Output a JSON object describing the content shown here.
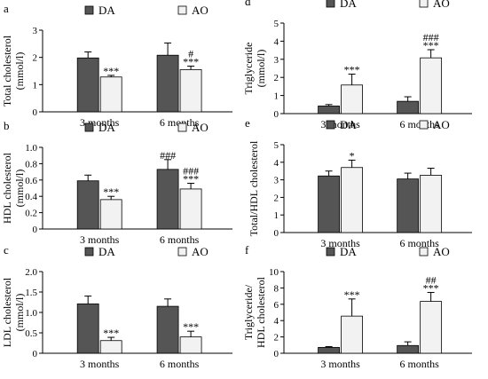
{
  "colors": {
    "DA": "#555555",
    "AO": "#f2f2f2",
    "axis": "#000000"
  },
  "chart_data": [
    {
      "panel": "a",
      "type": "bar",
      "ylabel": [
        "Total cholesterol",
        "(mmol/l)"
      ],
      "categories": [
        "3 months",
        "6 months"
      ],
      "ylim": [
        0,
        3
      ],
      "ticks": [
        "0",
        "1",
        "2",
        "3"
      ],
      "series": [
        {
          "name": "DA",
          "values": [
            1.98,
            2.08
          ],
          "errors": [
            0.22,
            0.45
          ]
        },
        {
          "name": "AO",
          "values": [
            1.28,
            1.55
          ],
          "errors": [
            0.06,
            0.13
          ]
        }
      ],
      "annotations": [
        {
          "series": 1,
          "category": 0,
          "lines": [
            "***"
          ]
        },
        {
          "series": 1,
          "category": 1,
          "lines": [
            "#",
            "***"
          ]
        }
      ]
    },
    {
      "panel": "b",
      "type": "bar",
      "ylabel": [
        "HDL cholesterol",
        "(mmol/l)"
      ],
      "categories": [
        "3 months",
        "6 months"
      ],
      "ylim": [
        0,
        1
      ],
      "ticks": [
        "0",
        "0.2",
        "0.4",
        "0.6",
        "0.8",
        "1.0"
      ],
      "series": [
        {
          "name": "DA",
          "values": [
            0.59,
            0.73
          ],
          "errors": [
            0.07,
            0.12
          ]
        },
        {
          "name": "AO",
          "values": [
            0.36,
            0.49
          ],
          "errors": [
            0.04,
            0.07
          ]
        }
      ],
      "annotations": [
        {
          "series": 0,
          "category": 1,
          "lines": [
            "###"
          ]
        },
        {
          "series": 1,
          "category": 0,
          "lines": [
            "***"
          ]
        },
        {
          "series": 1,
          "category": 1,
          "lines": [
            "###",
            "***"
          ]
        }
      ]
    },
    {
      "panel": "c",
      "type": "bar",
      "ylabel": [
        "LDL cholesterol",
        "(mmol/l)"
      ],
      "categories": [
        "3 months",
        "6 months"
      ],
      "ylim": [
        0,
        2
      ],
      "ticks": [
        "0",
        "0.5",
        "1.0",
        "1.5",
        "2.0"
      ],
      "series": [
        {
          "name": "DA",
          "values": [
            1.21,
            1.15
          ],
          "errors": [
            0.19,
            0.18
          ]
        },
        {
          "name": "AO",
          "values": [
            0.31,
            0.4
          ],
          "errors": [
            0.08,
            0.14
          ]
        }
      ],
      "annotations": [
        {
          "series": 1,
          "category": 0,
          "lines": [
            "***"
          ]
        },
        {
          "series": 1,
          "category": 1,
          "lines": [
            "***"
          ]
        }
      ]
    },
    {
      "panel": "d",
      "type": "bar",
      "ylabel": [
        "Triglyceride",
        "(mmol/l)"
      ],
      "categories": [
        "3 months",
        "6 months"
      ],
      "ylim": [
        0,
        5
      ],
      "ticks": [
        "0",
        "1",
        "2",
        "3",
        "4",
        "5"
      ],
      "series": [
        {
          "name": "DA",
          "values": [
            0.42,
            0.68
          ],
          "errors": [
            0.08,
            0.25
          ]
        },
        {
          "name": "AO",
          "values": [
            1.58,
            3.08
          ],
          "errors": [
            0.6,
            0.45
          ]
        }
      ],
      "annotations": [
        {
          "series": 1,
          "category": 0,
          "lines": [
            "***"
          ]
        },
        {
          "series": 1,
          "category": 1,
          "lines": [
            "###",
            "***"
          ]
        }
      ]
    },
    {
      "panel": "e",
      "type": "bar",
      "ylabel": [
        "Total/HDL cholesterol"
      ],
      "categories": [
        "3 months",
        "6 months"
      ],
      "ylim": [
        0,
        5
      ],
      "ticks": [
        "0",
        "1",
        "2",
        "3",
        "4",
        "5"
      ],
      "series": [
        {
          "name": "DA",
          "values": [
            3.22,
            3.05
          ],
          "errors": [
            0.28,
            0.33
          ]
        },
        {
          "name": "AO",
          "values": [
            3.7,
            3.26
          ],
          "errors": [
            0.42,
            0.4
          ]
        }
      ],
      "annotations": [
        {
          "series": 1,
          "category": 0,
          "lines": [
            "*"
          ]
        }
      ]
    },
    {
      "panel": "f",
      "type": "bar",
      "ylabel": [
        "Triglyceride/",
        "HDL cholesterol"
      ],
      "categories": [
        "3 months",
        "6 months"
      ],
      "ylim": [
        0,
        10
      ],
      "ticks": [
        "0",
        "2",
        "4",
        "6",
        "8",
        "10"
      ],
      "series": [
        {
          "name": "DA",
          "values": [
            0.72,
            0.95
          ],
          "errors": [
            0.1,
            0.45
          ]
        },
        {
          "name": "AO",
          "values": [
            4.55,
            6.35
          ],
          "errors": [
            2.1,
            1.1
          ]
        }
      ],
      "annotations": [
        {
          "series": 1,
          "category": 0,
          "lines": [
            "***"
          ]
        },
        {
          "series": 1,
          "category": 1,
          "lines": [
            "##",
            "***"
          ]
        }
      ]
    }
  ]
}
